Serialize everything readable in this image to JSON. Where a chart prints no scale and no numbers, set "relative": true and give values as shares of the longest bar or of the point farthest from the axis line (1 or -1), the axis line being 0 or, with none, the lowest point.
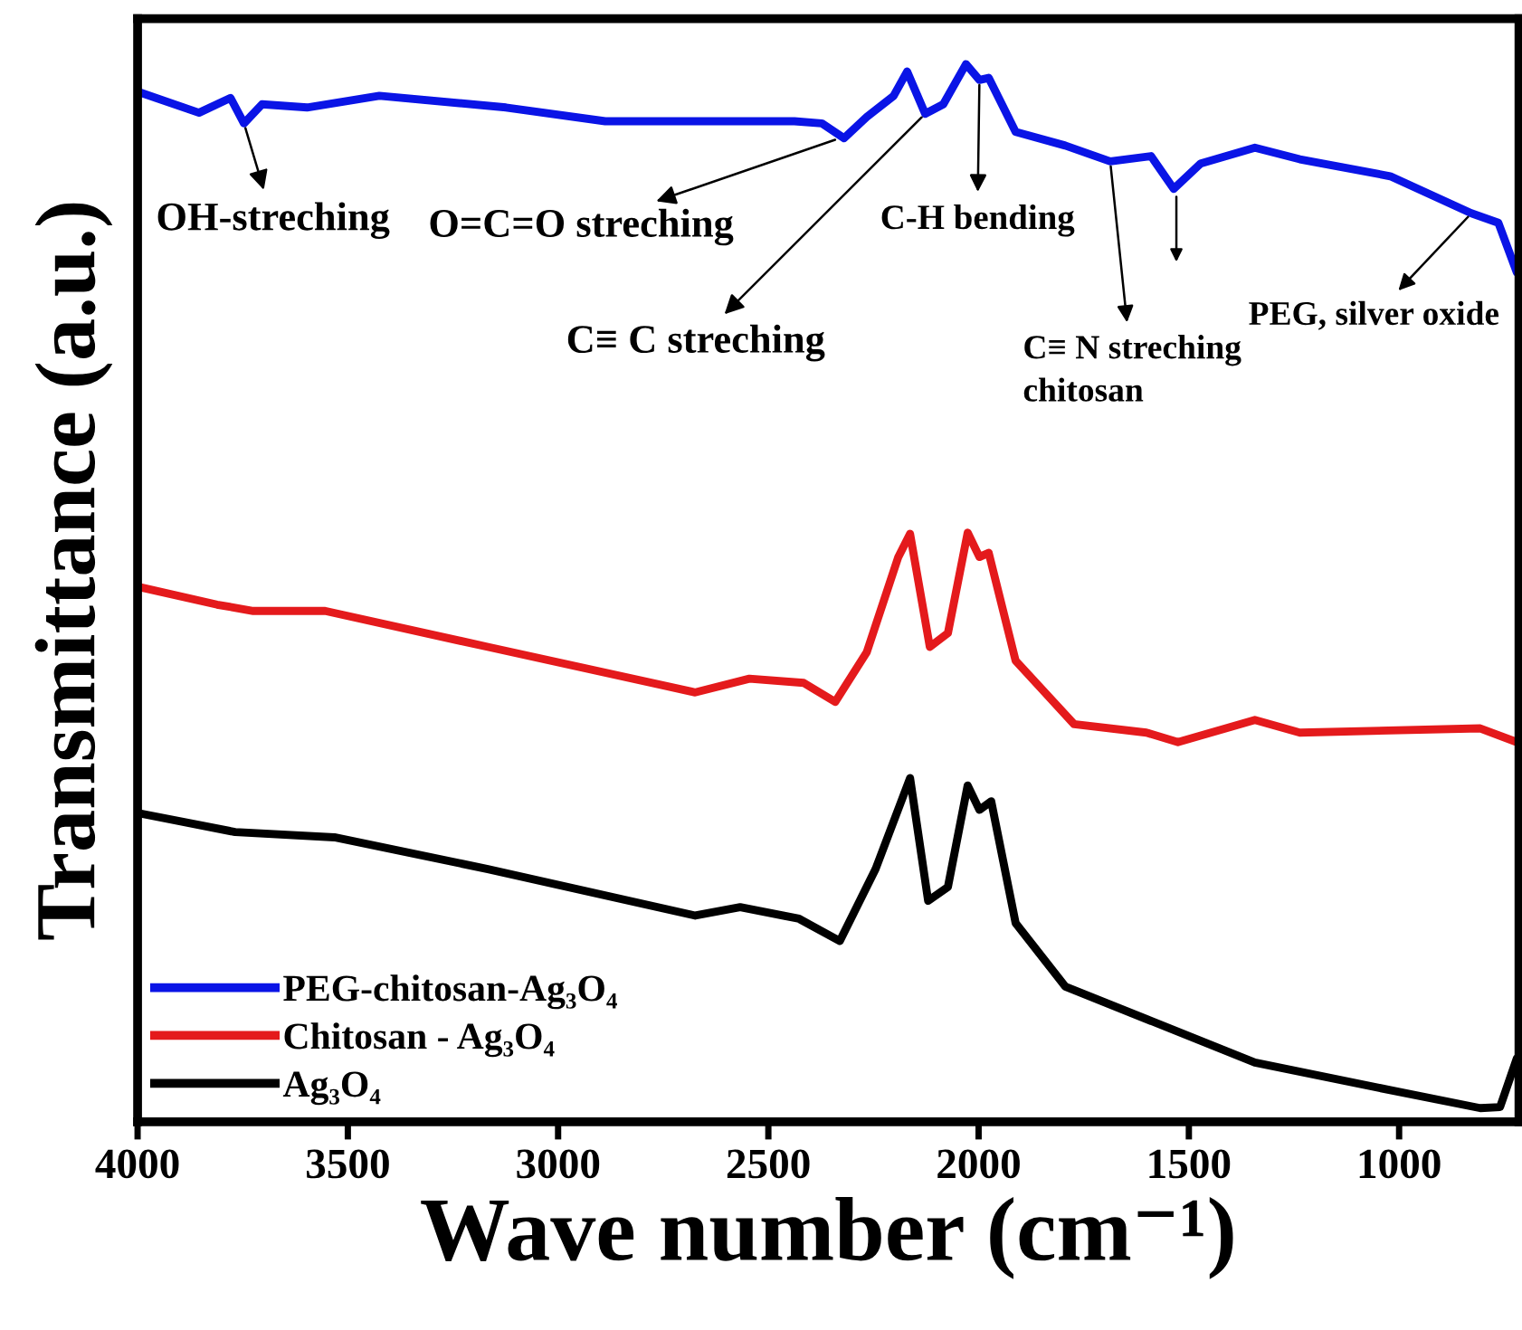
{
  "chart_data": {
    "type": "line",
    "relative": true,
    "xlabel": "Wave number (cm⁻¹)",
    "ylabel": "Transmittance (a.u.)",
    "xlim": [
      4000,
      715
    ],
    "xticks": [
      4000,
      3500,
      3000,
      2500,
      2000,
      1500,
      1000
    ],
    "tick_labels": "x",
    "grid": false,
    "legend": "bottom left",
    "marker": "none",
    "line_style": "solid",
    "series": [
      {
        "name": "PEG-chitosan-Ag₃O₄",
        "color": "#0a14e6",
        "x": [
          4000,
          3854,
          3779,
          3747,
          3704,
          3597,
          3425,
          3124,
          2888,
          2438,
          2373,
          2320,
          2266,
          2202,
          2170,
          2127,
          2084,
          2030,
          1998,
          1976,
          1912,
          1794,
          1687,
          1590,
          1536,
          1472,
          1343,
          1236,
          1021,
          828,
          764,
          720
        ],
        "values": [
          0.974,
          0.954,
          0.968,
          0.944,
          0.962,
          0.959,
          0.97,
          0.959,
          0.946,
          0.946,
          0.944,
          0.93,
          0.95,
          0.97,
          0.993,
          0.953,
          0.962,
          1.0,
          0.985,
          0.987,
          0.936,
          0.923,
          0.908,
          0.913,
          0.882,
          0.906,
          0.921,
          0.91,
          0.894,
          0.859,
          0.85,
          0.803
        ]
      },
      {
        "name": "Chitosan - Ag₃O₄",
        "color": "#e41a1c",
        "x": [
          4000,
          3811,
          3725,
          3554,
          3167,
          2674,
          2545,
          2416,
          2341,
          2266,
          2191,
          2163,
          2116,
          2073,
          2026,
          1998,
          1976,
          1912,
          1773,
          1601,
          1526,
          1343,
          1236,
          807,
          720
        ],
        "values": [
          0.506,
          0.489,
          0.483,
          0.483,
          0.449,
          0.406,
          0.419,
          0.415,
          0.397,
          0.444,
          0.534,
          0.556,
          0.449,
          0.462,
          0.557,
          0.534,
          0.538,
          0.436,
          0.376,
          0.368,
          0.359,
          0.38,
          0.368,
          0.372,
          0.359
        ]
      },
      {
        "name": "Ag₃O₄",
        "color": "#000000",
        "x": [
          4000,
          3768,
          3532,
          3167,
          2674,
          2567,
          2427,
          2330,
          2245,
          2163,
          2120,
          2073,
          2026,
          1998,
          1970,
          1912,
          1794,
          1343,
          1021,
          807,
          760,
          720
        ],
        "values": [
          0.292,
          0.274,
          0.269,
          0.239,
          0.195,
          0.203,
          0.192,
          0.171,
          0.239,
          0.325,
          0.209,
          0.222,
          0.318,
          0.295,
          0.303,
          0.188,
          0.128,
          0.056,
          0.03,
          0.013,
          0.014,
          0.06
        ]
      }
    ],
    "annotations": [
      {
        "text": "OH-streching",
        "x": 3747,
        "y": 0.944
      },
      {
        "text": "O=C=O streching",
        "x": 2330,
        "y": 0.93
      },
      {
        "text": "C≡ C streching",
        "x": 2127,
        "y": 0.953
      },
      {
        "text": "C-H bending",
        "x": 1998,
        "y": 0.985
      },
      {
        "text": "C≡ N streching\nchitosan",
        "x": 1687,
        "y": 0.908
      },
      {
        "text": "PEG, silver oxide",
        "x": 828,
        "y": 0.859
      }
    ]
  }
}
